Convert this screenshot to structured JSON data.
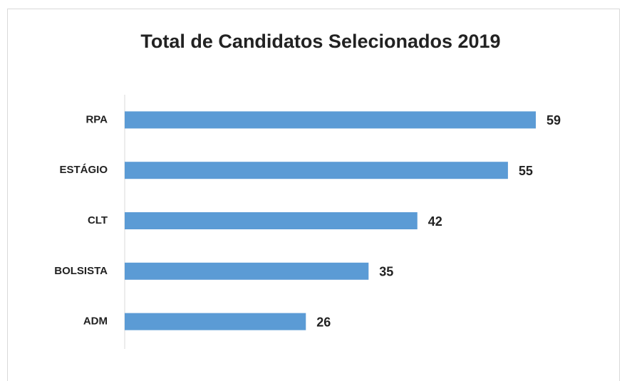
{
  "chart_data": {
    "type": "barh",
    "title": "Total de Candidatos Selecionados 2019",
    "categories": [
      "RPA",
      "ESTÁGIO",
      "CLT",
      "BOLSISTA",
      "ADM"
    ],
    "values": [
      59,
      55,
      42,
      35,
      26
    ],
    "color": "#5b9bd5"
  }
}
